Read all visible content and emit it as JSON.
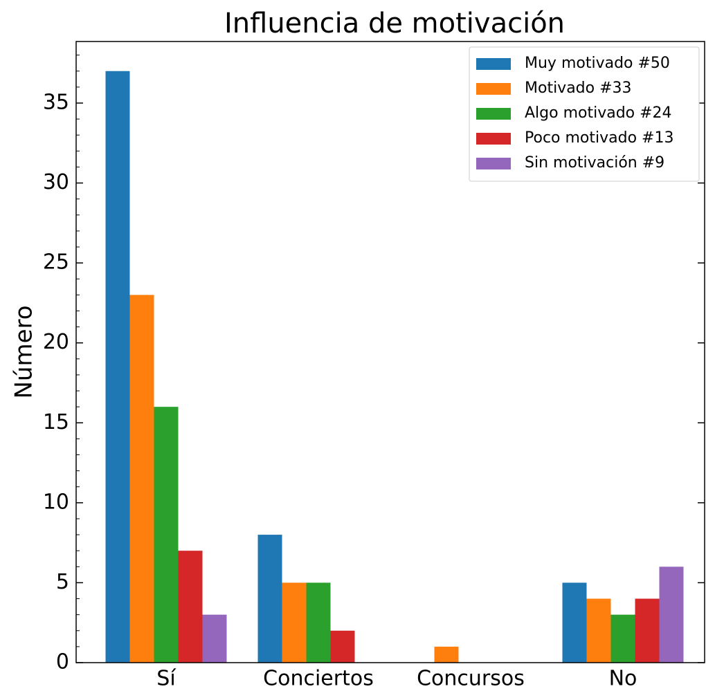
{
  "chart_data": {
    "type": "bar",
    "title": "Influencia de motivación",
    "ylabel": "Número",
    "categories": [
      "Sí",
      "Conciertos",
      "Concursos",
      "No"
    ],
    "series": [
      {
        "name": "Muy motivado #50",
        "color": "#1f77b4",
        "values": [
          37,
          8,
          0,
          5
        ]
      },
      {
        "name": "Motivado #33",
        "color": "#ff7f0e",
        "values": [
          23,
          5,
          1,
          4
        ]
      },
      {
        "name": "Algo motivado #24",
        "color": "#2ca02c",
        "values": [
          16,
          5,
          0,
          3
        ]
      },
      {
        "name": "Poco motivado #13",
        "color": "#d62728",
        "values": [
          7,
          2,
          0,
          4
        ]
      },
      {
        "name": "Sin motivación #9",
        "color": "#9467bd",
        "values": [
          3,
          0,
          0,
          6
        ]
      }
    ],
    "ylim": [
      0,
      38.85
    ],
    "yticks": [
      0,
      5,
      10,
      15,
      20,
      25,
      30,
      35
    ],
    "yminorticks": [
      1,
      2,
      3,
      4,
      6,
      7,
      8,
      9,
      11,
      12,
      13,
      14,
      16,
      17,
      18,
      19,
      21,
      22,
      23,
      24,
      26,
      27,
      28,
      29,
      31,
      32,
      33,
      34,
      36,
      37,
      38
    ],
    "legend": "upper right"
  }
}
